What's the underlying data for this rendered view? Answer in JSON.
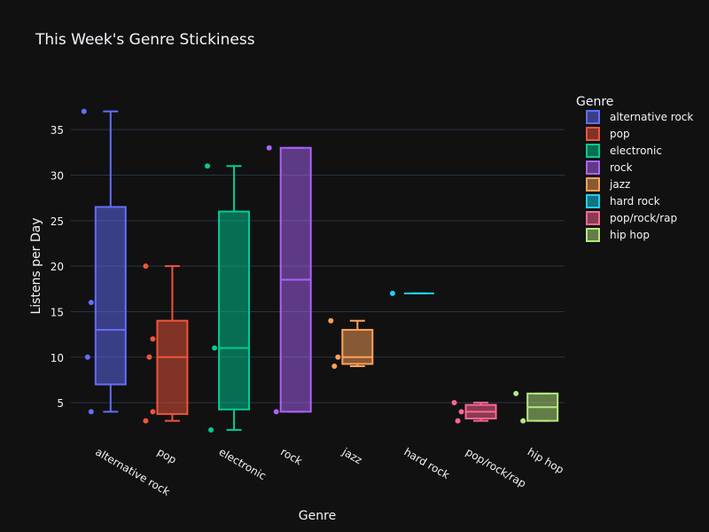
{
  "chart_data": {
    "type": "box",
    "title": "This Week's Genre Stickiness",
    "xlabel": "Genre",
    "ylabel": "Listens per Day",
    "ylim": [
      1.5,
      39.5
    ],
    "yticks": [
      5,
      10,
      15,
      20,
      25,
      30,
      35
    ],
    "grid": true,
    "legend": {
      "title": "Genre",
      "position": "right"
    },
    "categories": [
      "alternative rock",
      "pop",
      "electronic",
      "rock",
      "jazz",
      "hard rock",
      "pop/rock/rap",
      "hip hop"
    ],
    "series": [
      {
        "name": "alternative rock",
        "color": "#636efa",
        "points": [
          37,
          16,
          10,
          4
        ],
        "min": 4,
        "q1": 7,
        "median": 13,
        "q3": 26.5,
        "max": 37
      },
      {
        "name": "pop",
        "color": "#ef553b",
        "points": [
          20,
          12,
          10,
          4,
          3
        ],
        "min": 3,
        "q1": 3.75,
        "median": 10,
        "q3": 14,
        "max": 20
      },
      {
        "name": "electronic",
        "color": "#00cc96",
        "points": [
          31,
          11,
          2
        ],
        "min": 2,
        "q1": 4.25,
        "median": 11,
        "q3": 26,
        "max": 31
      },
      {
        "name": "rock",
        "color": "#ab63fa",
        "points": [
          33,
          4
        ],
        "min": 4,
        "q1": 4,
        "median": 18.5,
        "q3": 33,
        "max": 33
      },
      {
        "name": "jazz",
        "color": "#ffa15a",
        "points": [
          14,
          10,
          9
        ],
        "min": 9,
        "q1": 9.25,
        "median": 10,
        "q3": 13,
        "max": 14
      },
      {
        "name": "hard rock",
        "color": "#19d3f3",
        "points": [
          17
        ],
        "min": 17,
        "q1": 17,
        "median": 17,
        "q3": 17,
        "max": 17
      },
      {
        "name": "pop/rock/rap",
        "color": "#ff6692",
        "points": [
          5,
          4,
          3
        ],
        "min": 3,
        "q1": 3.25,
        "median": 4,
        "q3": 4.75,
        "max": 5
      },
      {
        "name": "hip hop",
        "color": "#b6e880",
        "points": [
          6,
          3
        ],
        "min": 3,
        "q1": 3,
        "median": 4.5,
        "q3": 6,
        "max": 6
      }
    ]
  }
}
